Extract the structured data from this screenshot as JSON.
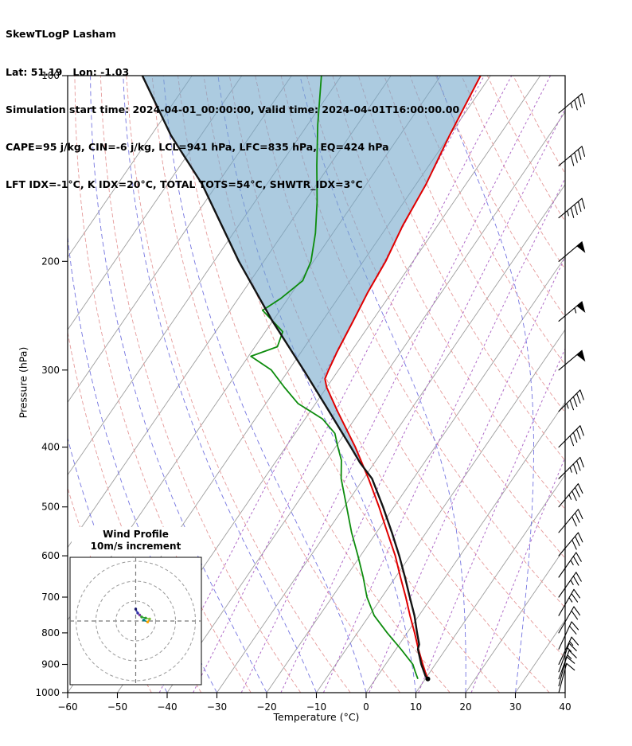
{
  "header": {
    "title": "SkewTLogP Lasham",
    "location": "Lat: 51.19   Lon: -1.03",
    "times": "Simulation start time: 2024-04-01_00:00:00, Valid time: 2024-04-01T16:00:00.00",
    "indices1": "CAPE=95 j/kg, CIN=-6 j/kg, LCL=941 hPa, LFC=835 hPa, EQ=424 hPa",
    "indices2": "LFT IDX=-1°C, K IDX=20°C, TOTAL TOTS=54°C, SHWTR_IDX=3°C"
  },
  "axes": {
    "y_label": "Pressure (hPa)",
    "x_label": "Temperature (°C)",
    "pressure_ticks": [
      100,
      200,
      300,
      400,
      500,
      600,
      700,
      800,
      900,
      1000
    ],
    "temperature_ticks": [
      -60,
      -50,
      -40,
      -30,
      -20,
      -10,
      0,
      10,
      20,
      30,
      40
    ]
  },
  "inset": {
    "title_line1": "Wind Profile",
    "title_line2": "10m/s increment",
    "rings_ms": [
      10,
      20,
      30
    ]
  },
  "chart_data": {
    "type": "line",
    "subtype": "skew_t_log_p_sounding",
    "title": "SkewTLogP Lasham",
    "xlabel": "Temperature (°C)",
    "ylabel": "Pressure (hPa)",
    "pressure_range_hPa": [
      100,
      1000
    ],
    "temperature_range": [
      -60,
      40
    ],
    "skew_degC_per_decade": 85,
    "indices": {
      "CAPE_j_kg": 95,
      "CIN_j_kg": -6,
      "LCL_hPa": 941,
      "LFC_hPa": 835,
      "EQ_hPa": 424,
      "LFT_IDX_C": -1,
      "K_IDX_C": 20,
      "TOTAL_TOTS_C": 54,
      "SHWTR_IDX_C": 3
    },
    "temperature_profile": {
      "pressure_hPa": [
        950,
        925,
        900,
        850,
        800,
        750,
        700,
        650,
        600,
        550,
        500,
        450,
        400,
        350,
        320,
        310,
        300,
        280,
        250,
        225,
        200,
        175,
        150,
        125,
        100
      ],
      "temp_C": [
        10.5,
        9.0,
        7.5,
        4.5,
        1.5,
        -1.8,
        -5.2,
        -9.0,
        -13.0,
        -17.8,
        -23.0,
        -29.0,
        -36.0,
        -44.5,
        -50.0,
        -51.5,
        -52.0,
        -52.8,
        -53.8,
        -54.8,
        -55.5,
        -57.0,
        -58.0,
        -60.0,
        -62.0
      ]
    },
    "dewpoint_profile": {
      "pressure_hPa": [
        950,
        925,
        900,
        850,
        800,
        750,
        700,
        650,
        600,
        550,
        500,
        450,
        420,
        400,
        380,
        360,
        340,
        320,
        300,
        285,
        275,
        260,
        240,
        230,
        215,
        200,
        180,
        160,
        140,
        120,
        100
      ],
      "temp_C": [
        8.5,
        7.0,
        5.5,
        1.0,
        -4.0,
        -9.0,
        -13.0,
        -16.5,
        -20.5,
        -25.0,
        -29.5,
        -34.5,
        -37.0,
        -39.5,
        -42.0,
        -46.5,
        -53.5,
        -58.5,
        -63.5,
        -69.5,
        -65.5,
        -66.5,
        -73.5,
        -71.5,
        -69.5,
        -70.5,
        -73.5,
        -77.5,
        -82.5,
        -88.0,
        -94.0
      ]
    },
    "parcel_profile": {
      "pressure_hPa": [
        950,
        941,
        900,
        850,
        835,
        800,
        750,
        700,
        650,
        600,
        550,
        500,
        450,
        424,
        400,
        350,
        300,
        250,
        200,
        150,
        125,
        100
      ],
      "temp_C": [
        10.5,
        9.7,
        7.2,
        4.4,
        4.0,
        2.0,
        -0.9,
        -4.4,
        -8.1,
        -12.2,
        -16.9,
        -22.2,
        -28.3,
        -32.9,
        -36.9,
        -46.2,
        -57.0,
        -70.0,
        -85.0,
        -103.0,
        -116.0,
        -130.0
      ]
    },
    "wind_profile": {
      "pressure_hPa": [
        1000,
        975,
        950,
        925,
        900,
        850,
        800,
        750,
        700,
        650,
        600,
        550,
        500,
        450,
        400,
        350,
        300,
        250,
        200,
        170,
        140,
        115
      ],
      "speed_kt": [
        10,
        10,
        15,
        15,
        15,
        20,
        20,
        25,
        25,
        25,
        30,
        30,
        35,
        35,
        40,
        45,
        50,
        55,
        50,
        45,
        40,
        35
      ],
      "direction_deg": [
        195,
        195,
        200,
        200,
        205,
        205,
        210,
        210,
        215,
        215,
        220,
        220,
        220,
        225,
        225,
        225,
        230,
        230,
        230,
        230,
        230,
        230
      ]
    },
    "hodograph_trace_ms": [
      {
        "u": 0.0,
        "v": 6.0,
        "c": "#1a1a6e"
      },
      {
        "u": 1.0,
        "v": 4.0,
        "c": "#3333aa"
      },
      {
        "u": 2.0,
        "v": 3.0,
        "c": "#7a3fa0"
      },
      {
        "u": 3.0,
        "v": 2.0,
        "c": "#2ca02c"
      },
      {
        "u": 5.0,
        "v": 1.5,
        "c": "#2ca02c"
      },
      {
        "u": 7.0,
        "v": 1.0,
        "c": "#7fbf3f"
      },
      {
        "u": 6.0,
        "v": -0.5,
        "c": "#ffa500"
      },
      {
        "u": 4.0,
        "v": 0.5,
        "c": "#008080"
      }
    ],
    "gridlines": {
      "isotherms_C": {
        "min": -120,
        "max": 40,
        "step": 10
      },
      "dry_adiabats_K": {
        "min": 230,
        "max": 420,
        "step": 10
      },
      "moist_adiabat_start_C": [
        -40,
        -30,
        -20,
        -10,
        0,
        10,
        20,
        30,
        40
      ],
      "mixing_ratio_g_kg": [
        0.1,
        0.2,
        0.5,
        1,
        2,
        4,
        8,
        16
      ]
    },
    "colors": {
      "temperature": "#e00000",
      "dewpoint": "#0d8c0d",
      "parcel": "#141414",
      "cape_fill": "#74a9cc",
      "isotherm": "#9e9e9e",
      "dry_adiabat": "#e59a9a",
      "moist_adiabat": "#7474e0",
      "mixing_ratio": "#b06bc8",
      "frame": "#000000"
    }
  }
}
